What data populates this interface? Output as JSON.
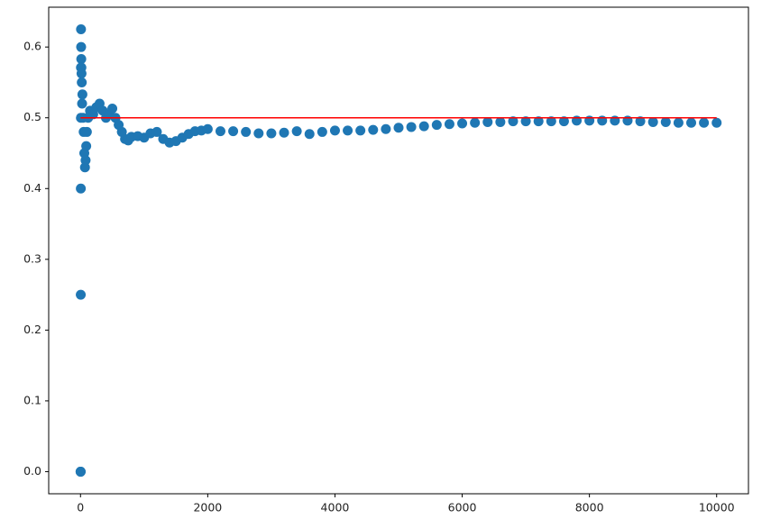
{
  "chart_data": {
    "type": "scatter",
    "color": "#1f77b4",
    "x": [
      1,
      2,
      3,
      4,
      5,
      6,
      7,
      8,
      10,
      12,
      14,
      16,
      20,
      25,
      30,
      40,
      50,
      60,
      70,
      80,
      90,
      100,
      120,
      150,
      200,
      250,
      300,
      350,
      400,
      450,
      500,
      550,
      600,
      650,
      700,
      750,
      800,
      900,
      1000,
      1100,
      1200,
      1300,
      1400,
      1500,
      1600,
      1700,
      1800,
      1900,
      2000,
      2200,
      2400,
      2600,
      2800,
      3000,
      3200,
      3400,
      3600,
      3800,
      4000,
      4200,
      4400,
      4600,
      4800,
      5000,
      5200,
      5400,
      5600,
      5800,
      6000,
      6200,
      6400,
      6600,
      6800,
      7000,
      7200,
      7400,
      7600,
      7800,
      8000,
      8200,
      8400,
      8600,
      8800,
      9000,
      9200,
      9400,
      9600,
      9800,
      10000
    ],
    "values": [
      0,
      0,
      0,
      0.25,
      0.4,
      0.5,
      0.571,
      0.625,
      0.6,
      0.583,
      0.571,
      0.5625,
      0.55,
      0.52,
      0.533,
      0.5,
      0.48,
      0.45,
      0.43,
      0.44,
      0.46,
      0.48,
      0.5,
      0.51,
      0.505,
      0.515,
      0.52,
      0.51,
      0.5,
      0.505,
      0.513,
      0.5,
      0.49,
      0.48,
      0.47,
      0.468,
      0.473,
      0.474,
      0.472,
      0.478,
      0.48,
      0.47,
      0.465,
      0.467,
      0.472,
      0.477,
      0.481,
      0.482,
      0.484,
      0.481,
      0.481,
      0.48,
      0.478,
      0.478,
      0.479,
      0.481,
      0.477,
      0.48,
      0.482,
      0.482,
      0.482,
      0.483,
      0.484,
      0.486,
      0.487,
      0.488,
      0.49,
      0.491,
      0.492,
      0.493,
      0.494,
      0.494,
      0.495,
      0.495,
      0.495,
      0.495,
      0.495,
      0.496,
      0.496,
      0.496,
      0.496,
      0.496,
      0.495,
      0.494,
      0.494,
      0.493,
      0.493,
      0.493,
      0.493
    ],
    "hline": {
      "y": 0.5,
      "xmin": 0,
      "xmax": 10000,
      "color": "red"
    },
    "xlim": [
      -500,
      10500
    ],
    "ylim": [
      -0.03125,
      0.65625
    ],
    "xticks": [
      0,
      2000,
      4000,
      6000,
      8000,
      10000
    ],
    "yticks": [
      {
        "value": 0,
        "label": "0.0"
      },
      0.1,
      0.2,
      0.3,
      0.4,
      0.5,
      0.6
    ]
  }
}
